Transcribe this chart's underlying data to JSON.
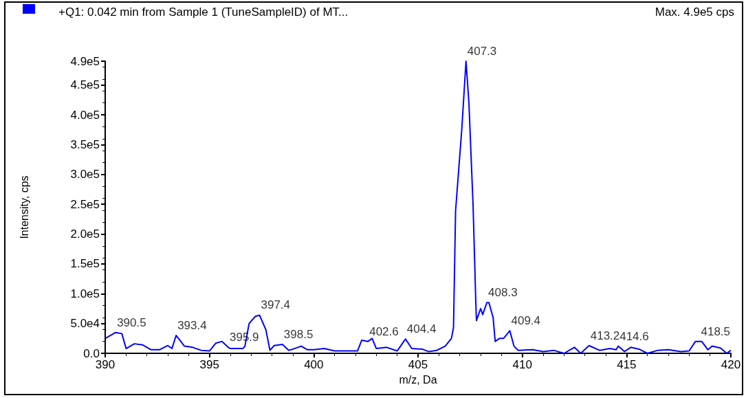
{
  "chart_data": {
    "type": "line",
    "title": "+Q1: 0.042 min from Sample 1 (TuneSampleID) of MT...",
    "subtitle": "Max. 4.9e5 cps",
    "xlabel": "m/z, Da",
    "ylabel": "Intensity, cps",
    "xlim": [
      390,
      420
    ],
    "xticks": [
      390,
      395,
      400,
      405,
      410,
      415,
      420
    ],
    "ylim": [
      0,
      490000
    ],
    "yticks": [
      {
        "value": 0,
        "label": "0.0"
      },
      {
        "value": 50000,
        "label": "5.0e4"
      },
      {
        "value": 100000,
        "label": "1.0e5"
      },
      {
        "value": 150000,
        "label": "1.5e5"
      },
      {
        "value": 200000,
        "label": "2.0e5"
      },
      {
        "value": 250000,
        "label": "2.5e5"
      },
      {
        "value": 300000,
        "label": "3.0e5"
      },
      {
        "value": 350000,
        "label": "3.5e5"
      },
      {
        "value": 400000,
        "label": "4.0e5"
      },
      {
        "value": 450000,
        "label": "4.5e5"
      },
      {
        "value": 490000,
        "label": "4.9e5"
      }
    ],
    "grid": false,
    "marker": "none",
    "line_style": "solid",
    "series": [
      {
        "color": "#0000ff",
        "x": [
          390.0,
          390.5,
          390.8,
          391.0,
          391.4,
          391.8,
          392.2,
          392.6,
          393.0,
          393.2,
          393.4,
          393.8,
          394.2,
          394.6,
          395.0,
          395.3,
          395.6,
          395.9,
          396.0,
          396.6,
          396.7,
          396.9,
          397.2,
          397.4,
          397.7,
          397.9,
          398.1,
          398.5,
          398.8,
          399.0,
          399.4,
          399.7,
          400.0,
          400.5,
          401.0,
          401.6,
          402.1,
          402.3,
          402.6,
          402.8,
          403.0,
          403.5,
          404.0,
          404.4,
          404.7,
          405.2,
          405.5,
          405.9,
          406.3,
          406.6,
          406.7,
          406.8,
          407.1,
          407.3,
          407.44,
          407.64,
          407.77,
          407.8,
          408.0,
          408.1,
          408.3,
          408.4,
          408.6,
          408.7,
          408.9,
          409.1,
          409.4,
          409.6,
          409.8,
          410.5,
          411.0,
          411.5,
          412.0,
          412.5,
          412.8,
          413.2,
          413.7,
          414.2,
          414.5,
          414.6,
          414.9,
          415.2,
          415.6,
          416.0,
          416.5,
          417.0,
          417.6,
          418.0,
          418.3,
          418.6,
          418.9,
          419.1,
          419.5,
          419.8,
          420.0
        ],
        "values": [
          25000,
          35000,
          33000,
          8000,
          16000,
          14000,
          6000,
          6000,
          13000,
          8000,
          30000,
          12000,
          10000,
          5000,
          4000,
          17000,
          20000,
          10000,
          8000,
          8000,
          12000,
          50000,
          62000,
          64000,
          40000,
          5000,
          13000,
          15000,
          5000,
          7000,
          12000,
          6000,
          6000,
          8000,
          4000,
          4000,
          4000,
          22000,
          20000,
          25000,
          8000,
          10000,
          4000,
          24000,
          8000,
          7000,
          3000,
          5000,
          12000,
          25000,
          43000,
          239000,
          377000,
          490000,
          420000,
          247000,
          85000,
          55000,
          75000,
          65000,
          85000,
          85000,
          60000,
          20000,
          25000,
          25000,
          38000,
          12000,
          5000,
          6000,
          3000,
          5000,
          0,
          10000,
          0,
          13000,
          5000,
          8000,
          6000,
          12000,
          3000,
          10000,
          7000,
          0,
          5000,
          6000,
          3000,
          4000,
          20000,
          20000,
          6000,
          12000,
          9000,
          0,
          5000
        ]
      }
    ],
    "annotations": [
      {
        "text": "390.5",
        "x": 390.5,
        "y": 35000
      },
      {
        "text": "393.4",
        "x": 393.4,
        "y": 30000
      },
      {
        "text": "395.9",
        "x": 395.9,
        "y": 10000
      },
      {
        "text": "397.4",
        "x": 397.4,
        "y": 64000
      },
      {
        "text": "398.5",
        "x": 398.5,
        "y": 15000
      },
      {
        "text": "402.6",
        "x": 402.6,
        "y": 20000
      },
      {
        "text": "404.4",
        "x": 404.4,
        "y": 24000
      },
      {
        "text": "407.3",
        "x": 407.3,
        "y": 490000
      },
      {
        "text": "408.3",
        "x": 408.3,
        "y": 85000
      },
      {
        "text": "409.4",
        "x": 409.4,
        "y": 38000
      },
      {
        "text": "413.2",
        "x": 413.2,
        "y": 13000
      },
      {
        "text": "414.6",
        "x": 414.6,
        "y": 12000
      },
      {
        "text": "418.5",
        "x": 418.5,
        "y": 20000
      }
    ]
  }
}
